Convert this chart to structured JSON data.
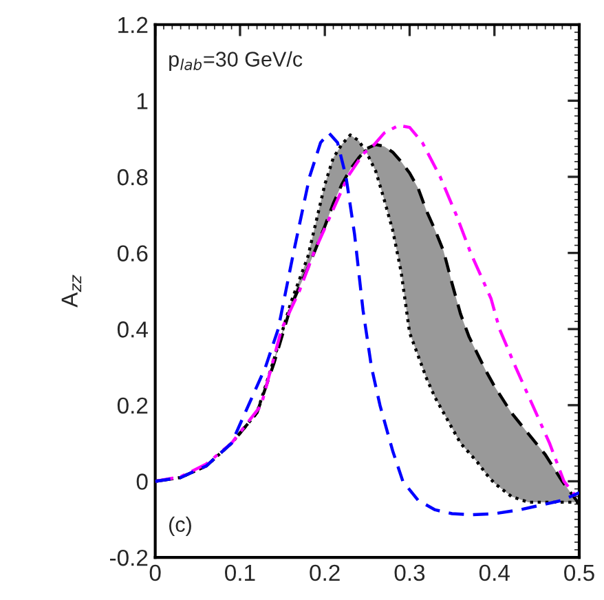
{
  "chart_data": {
    "type": "line",
    "ylabel": "A$_{zz}$",
    "annotations": [
      "p$_{lab}$=30 GeV/c",
      "(c)"
    ],
    "xlim": [
      0,
      0.5
    ],
    "xticks": [
      0,
      0.1,
      0.2,
      0.3,
      0.4,
      0.5
    ],
    "ylim": [
      -0.2,
      1.2
    ],
    "yticks": [
      {
        "value": -0.2,
        "label": "-0.2"
      },
      0,
      0.2,
      0.4,
      0.6,
      0.8,
      1,
      1.2
    ],
    "series": [
      {
        "color": "#000000",
        "line_style": "dotted",
        "x": [
          0,
          0.03,
          0.06,
          0.09,
          0.12,
          0.14,
          0.16,
          0.18,
          0.2,
          0.21,
          0.22,
          0.23,
          0.24,
          0.25,
          0.26,
          0.27,
          0.28,
          0.29,
          0.3,
          0.31,
          0.32,
          0.33,
          0.34,
          0.35,
          0.36,
          0.37,
          0.38,
          0.39,
          0.4,
          0.42,
          0.44,
          0.46,
          0.48,
          0.5
        ],
        "values": [
          0,
          0.01,
          0.04,
          0.1,
          0.18,
          0.32,
          0.47,
          0.59,
          0.78,
          0.85,
          0.885,
          0.91,
          0.895,
          0.86,
          0.815,
          0.74,
          0.66,
          0.55,
          0.39,
          0.33,
          0.27,
          0.22,
          0.18,
          0.14,
          0.1,
          0.075,
          0.05,
          0.02,
          -0.005,
          -0.04,
          -0.055,
          -0.055,
          -0.055,
          -0.055
        ]
      },
      {
        "color": "#000000",
        "line_style": "dashed",
        "x": [
          0,
          0.03,
          0.06,
          0.09,
          0.12,
          0.14,
          0.16,
          0.18,
          0.2,
          0.21,
          0.22,
          0.23,
          0.24,
          0.25,
          0.26,
          0.27,
          0.28,
          0.29,
          0.3,
          0.31,
          0.32,
          0.33,
          0.34,
          0.35,
          0.36,
          0.37,
          0.38,
          0.39,
          0.4,
          0.42,
          0.44,
          0.46,
          0.48,
          0.5
        ],
        "values": [
          0,
          0.01,
          0.04,
          0.1,
          0.18,
          0.31,
          0.46,
          0.56,
          0.67,
          0.73,
          0.78,
          0.82,
          0.85,
          0.875,
          0.885,
          0.88,
          0.865,
          0.84,
          0.81,
          0.77,
          0.71,
          0.66,
          0.605,
          0.52,
          0.44,
          0.38,
          0.335,
          0.29,
          0.25,
          0.18,
          0.125,
          0.07,
          0,
          -0.06
        ],
        "upper": [
          0,
          0.01,
          0.04,
          0.1,
          0.18,
          0.31,
          0.46,
          0.56,
          0.67,
          0.73,
          0.78,
          0.82,
          0.85,
          0.875,
          0.885,
          0.88,
          0.865,
          0.84,
          0.81,
          0.77,
          0.71,
          0.66,
          0.605,
          0.52,
          0.44,
          0.38,
          0.335,
          0.29,
          0.25,
          0.18,
          0.125,
          0.07,
          0,
          -0.06
        ],
        "lower": [
          0,
          0.01,
          0.04,
          0.1,
          0.18,
          0.32,
          0.47,
          0.59,
          0.78,
          0.85,
          0.885,
          0.91,
          0.895,
          0.86,
          0.815,
          0.74,
          0.66,
          0.55,
          0.39,
          0.33,
          0.27,
          0.22,
          0.18,
          0.14,
          0.1,
          0.075,
          0.05,
          0.02,
          -0.005,
          -0.04,
          -0.055,
          -0.055,
          -0.055,
          -0.055
        ]
      },
      {
        "color": "#ff00ff",
        "line_style": "dashdot",
        "x": [
          0,
          0.03,
          0.06,
          0.09,
          0.125,
          0.149,
          0.17,
          0.187,
          0.207,
          0.227,
          0.245,
          0.258,
          0.27,
          0.287,
          0.3,
          0.315,
          0.336,
          0.355,
          0.372,
          0.396,
          0.406,
          0.425,
          0.445,
          0.465,
          0.482,
          0.5
        ],
        "values": [
          0,
          0.012,
          0.045,
          0.1,
          0.2,
          0.4,
          0.5,
          0.6,
          0.7,
          0.8,
          0.86,
          0.884,
          0.915,
          0.935,
          0.93,
          0.89,
          0.8,
          0.7,
          0.6,
          0.48,
          0.4,
          0.3,
          0.2,
          0.1,
          0,
          -0.05
        ]
      },
      {
        "color": "#0000ff",
        "line_style": "dashed",
        "x": [
          0,
          0.03,
          0.06,
          0.09,
          0.11,
          0.13,
          0.145,
          0.163,
          0.182,
          0.195,
          0.205,
          0.215,
          0.225,
          0.235,
          0.245,
          0.255,
          0.265,
          0.28,
          0.292,
          0.31,
          0.33,
          0.35,
          0.373,
          0.4,
          0.43,
          0.46,
          0.48,
          0.5
        ],
        "values": [
          0,
          0.01,
          0.04,
          0.1,
          0.2,
          0.3,
          0.4,
          0.6,
          0.8,
          0.89,
          0.915,
          0.89,
          0.8,
          0.65,
          0.45,
          0.3,
          0.2,
          0.08,
          0,
          -0.05,
          -0.075,
          -0.085,
          -0.088,
          -0.085,
          -0.075,
          -0.06,
          -0.05,
          -0.03
        ]
      }
    ]
  }
}
